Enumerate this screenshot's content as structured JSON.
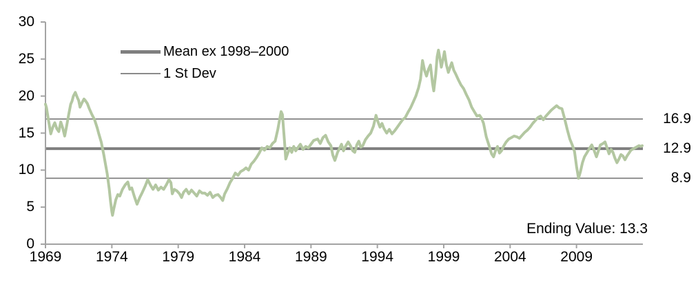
{
  "chart_data": {
    "type": "line",
    "title": "",
    "xlabel": "",
    "ylabel": "",
    "x_axis": {
      "min": 1969,
      "max": 2014,
      "tick_labels": [
        "1969",
        "1974",
        "1979",
        "1984",
        "1989",
        "1994",
        "1999",
        "2004",
        "2009"
      ],
      "ticks": [
        1969,
        1974,
        1979,
        1984,
        1989,
        1994,
        1999,
        2004,
        2009
      ]
    },
    "y_axis": {
      "min": 0,
      "max": 30,
      "tick_labels": [
        "30",
        "25",
        "20",
        "15",
        "10",
        "5",
        "0"
      ],
      "ticks": [
        0,
        5,
        10,
        15,
        20,
        25,
        30
      ]
    },
    "grid": "off",
    "legend_position": "top-left-inside",
    "legend": [
      {
        "label": "Mean ex 1998–2000",
        "style": "thick"
      },
      {
        "label": "1 St Dev",
        "style": "thin"
      }
    ],
    "reference_lines": [
      {
        "label": "16.9",
        "value": 16.9,
        "style": "thin"
      },
      {
        "label": "12.9",
        "value": 12.9,
        "style": "thick"
      },
      {
        "label": "8.9",
        "value": 8.9,
        "style": "thin"
      }
    ],
    "annotation": "Ending Value: 13.3",
    "ending_value": 13.3,
    "colors": {
      "series": "#b3c7a1",
      "mean_line": "#7f7f7f",
      "stdev_line": "#8a8a8a",
      "axis": "#a3a3a3",
      "text": "#000000"
    },
    "series": [
      {
        "points": [
          [
            1969.0,
            18.9
          ],
          [
            1969.08,
            18.4
          ],
          [
            1969.2,
            17.0
          ],
          [
            1969.4,
            14.9
          ],
          [
            1969.55,
            15.8
          ],
          [
            1969.7,
            16.4
          ],
          [
            1969.85,
            15.6
          ],
          [
            1970.0,
            15.2
          ],
          [
            1970.15,
            16.5
          ],
          [
            1970.3,
            15.7
          ],
          [
            1970.45,
            14.6
          ],
          [
            1970.6,
            16.0
          ],
          [
            1970.75,
            17.5
          ],
          [
            1970.9,
            18.9
          ],
          [
            1971.0,
            19.3
          ],
          [
            1971.1,
            20.0
          ],
          [
            1971.25,
            20.5
          ],
          [
            1971.4,
            19.8
          ],
          [
            1971.5,
            19.4
          ],
          [
            1971.6,
            18.5
          ],
          [
            1971.75,
            19.1
          ],
          [
            1971.9,
            19.6
          ],
          [
            1972.0,
            19.4
          ],
          [
            1972.15,
            19.0
          ],
          [
            1972.3,
            18.3
          ],
          [
            1972.5,
            17.5
          ],
          [
            1972.7,
            16.8
          ],
          [
            1972.9,
            15.7
          ],
          [
            1973.0,
            15.0
          ],
          [
            1973.2,
            13.8
          ],
          [
            1973.4,
            12.0
          ],
          [
            1973.5,
            11.0
          ],
          [
            1973.65,
            9.5
          ],
          [
            1973.8,
            7.5
          ],
          [
            1973.9,
            5.8
          ],
          [
            1974.0,
            4.4
          ],
          [
            1974.05,
            3.9
          ],
          [
            1974.15,
            4.8
          ],
          [
            1974.3,
            6.0
          ],
          [
            1974.45,
            6.7
          ],
          [
            1974.6,
            6.5
          ],
          [
            1974.8,
            7.4
          ],
          [
            1975.0,
            8.0
          ],
          [
            1975.2,
            8.4
          ],
          [
            1975.35,
            7.4
          ],
          [
            1975.5,
            7.6
          ],
          [
            1975.7,
            6.4
          ],
          [
            1975.9,
            5.4
          ],
          [
            1976.1,
            6.3
          ],
          [
            1976.3,
            7.0
          ],
          [
            1976.5,
            7.8
          ],
          [
            1976.7,
            8.7
          ],
          [
            1976.9,
            8.0
          ],
          [
            1977.1,
            7.4
          ],
          [
            1977.3,
            8.0
          ],
          [
            1977.5,
            7.3
          ],
          [
            1977.7,
            7.7
          ],
          [
            1977.9,
            7.4
          ],
          [
            1978.1,
            8.0
          ],
          [
            1978.3,
            8.7
          ],
          [
            1978.45,
            8.3
          ],
          [
            1978.55,
            6.8
          ],
          [
            1978.7,
            7.4
          ],
          [
            1978.9,
            7.2
          ],
          [
            1979.1,
            6.8
          ],
          [
            1979.25,
            6.3
          ],
          [
            1979.4,
            7.0
          ],
          [
            1979.6,
            7.4
          ],
          [
            1979.8,
            6.8
          ],
          [
            1980.0,
            7.3
          ],
          [
            1980.2,
            6.9
          ],
          [
            1980.4,
            6.5
          ],
          [
            1980.6,
            7.2
          ],
          [
            1980.8,
            6.9
          ],
          [
            1981.0,
            6.9
          ],
          [
            1981.2,
            6.6
          ],
          [
            1981.4,
            7.0
          ],
          [
            1981.6,
            6.3
          ],
          [
            1981.8,
            6.6
          ],
          [
            1982.0,
            6.7
          ],
          [
            1982.2,
            6.3
          ],
          [
            1982.35,
            5.9
          ],
          [
            1982.5,
            6.8
          ],
          [
            1982.7,
            7.5
          ],
          [
            1982.9,
            8.3
          ],
          [
            1983.1,
            8.9
          ],
          [
            1983.3,
            9.6
          ],
          [
            1983.5,
            9.3
          ],
          [
            1983.7,
            9.8
          ],
          [
            1983.9,
            10.0
          ],
          [
            1984.1,
            10.3
          ],
          [
            1984.3,
            10.0
          ],
          [
            1984.5,
            10.8
          ],
          [
            1984.7,
            11.2
          ],
          [
            1984.9,
            11.7
          ],
          [
            1985.1,
            12.3
          ],
          [
            1985.3,
            13.0
          ],
          [
            1985.5,
            12.7
          ],
          [
            1985.7,
            13.2
          ],
          [
            1985.9,
            13.0
          ],
          [
            1986.1,
            13.6
          ],
          [
            1986.3,
            13.9
          ],
          [
            1986.5,
            15.5
          ],
          [
            1986.65,
            17.0
          ],
          [
            1986.75,
            17.9
          ],
          [
            1986.85,
            17.5
          ],
          [
            1987.0,
            14.0
          ],
          [
            1987.1,
            11.5
          ],
          [
            1987.25,
            12.3
          ],
          [
            1987.4,
            13.0
          ],
          [
            1987.55,
            12.4
          ],
          [
            1987.7,
            13.2
          ],
          [
            1987.85,
            12.6
          ],
          [
            1988.0,
            13.0
          ],
          [
            1988.2,
            13.5
          ],
          [
            1988.4,
            12.8
          ],
          [
            1988.6,
            13.2
          ],
          [
            1988.8,
            13.0
          ],
          [
            1989.0,
            13.5
          ],
          [
            1989.2,
            14.0
          ],
          [
            1989.5,
            14.2
          ],
          [
            1989.7,
            13.6
          ],
          [
            1989.9,
            14.4
          ],
          [
            1990.1,
            14.7
          ],
          [
            1990.3,
            13.8
          ],
          [
            1990.5,
            13.3
          ],
          [
            1990.65,
            12.0
          ],
          [
            1990.8,
            11.3
          ],
          [
            1991.0,
            12.4
          ],
          [
            1991.3,
            13.5
          ],
          [
            1991.45,
            12.6
          ],
          [
            1991.6,
            13.2
          ],
          [
            1991.8,
            13.8
          ],
          [
            1992.0,
            13.2
          ],
          [
            1992.15,
            12.6
          ],
          [
            1992.3,
            12.4
          ],
          [
            1992.45,
            13.4
          ],
          [
            1992.6,
            13.9
          ],
          [
            1992.75,
            13.1
          ],
          [
            1992.9,
            13.3
          ],
          [
            1993.1,
            14.1
          ],
          [
            1993.3,
            14.6
          ],
          [
            1993.5,
            15.0
          ],
          [
            1993.7,
            15.9
          ],
          [
            1993.9,
            17.4
          ],
          [
            1994.05,
            16.5
          ],
          [
            1994.2,
            15.8
          ],
          [
            1994.35,
            16.3
          ],
          [
            1994.5,
            15.6
          ],
          [
            1994.7,
            15.0
          ],
          [
            1994.9,
            15.5
          ],
          [
            1995.1,
            14.9
          ],
          [
            1995.3,
            15.3
          ],
          [
            1995.5,
            15.8
          ],
          [
            1995.7,
            16.3
          ],
          [
            1995.9,
            16.8
          ],
          [
            1996.1,
            17.1
          ],
          [
            1996.3,
            17.8
          ],
          [
            1996.5,
            18.4
          ],
          [
            1996.7,
            19.2
          ],
          [
            1996.9,
            20.0
          ],
          [
            1997.1,
            21.1
          ],
          [
            1997.25,
            22.3
          ],
          [
            1997.4,
            24.8
          ],
          [
            1997.55,
            23.5
          ],
          [
            1997.7,
            22.7
          ],
          [
            1997.85,
            23.6
          ],
          [
            1998.0,
            24.2
          ],
          [
            1998.15,
            21.8
          ],
          [
            1998.25,
            20.7
          ],
          [
            1998.4,
            23.0
          ],
          [
            1998.5,
            25.3
          ],
          [
            1998.6,
            26.2
          ],
          [
            1998.72,
            25.0
          ],
          [
            1998.82,
            23.9
          ],
          [
            1998.95,
            25.0
          ],
          [
            1999.05,
            26.0
          ],
          [
            1999.2,
            24.2
          ],
          [
            1999.35,
            23.2
          ],
          [
            1999.5,
            24.0
          ],
          [
            1999.6,
            24.5
          ],
          [
            1999.75,
            23.5
          ],
          [
            1999.9,
            23.0
          ],
          [
            2000.1,
            22.2
          ],
          [
            2000.3,
            21.5
          ],
          [
            2000.5,
            21.0
          ],
          [
            2000.7,
            20.2
          ],
          [
            2000.9,
            19.5
          ],
          [
            2001.1,
            18.5
          ],
          [
            2001.3,
            17.9
          ],
          [
            2001.5,
            17.3
          ],
          [
            2001.7,
            17.4
          ],
          [
            2001.85,
            17.0
          ],
          [
            2002.0,
            16.3
          ],
          [
            2002.2,
            14.5
          ],
          [
            2002.4,
            13.4
          ],
          [
            2002.6,
            12.2
          ],
          [
            2002.75,
            11.8
          ],
          [
            2002.9,
            12.6
          ],
          [
            2003.05,
            13.2
          ],
          [
            2003.2,
            12.3
          ],
          [
            2003.35,
            12.6
          ],
          [
            2003.5,
            13.2
          ],
          [
            2003.7,
            13.8
          ],
          [
            2003.9,
            14.2
          ],
          [
            2004.1,
            14.4
          ],
          [
            2004.3,
            14.6
          ],
          [
            2004.5,
            14.5
          ],
          [
            2004.7,
            14.3
          ],
          [
            2004.9,
            14.7
          ],
          [
            2005.1,
            15.1
          ],
          [
            2005.3,
            15.4
          ],
          [
            2005.5,
            15.8
          ],
          [
            2005.7,
            16.3
          ],
          [
            2005.9,
            16.7
          ],
          [
            2006.1,
            17.1
          ],
          [
            2006.3,
            17.3
          ],
          [
            2006.5,
            16.8
          ],
          [
            2006.7,
            17.3
          ],
          [
            2006.9,
            17.7
          ],
          [
            2007.1,
            18.1
          ],
          [
            2007.3,
            18.4
          ],
          [
            2007.5,
            18.7
          ],
          [
            2007.7,
            18.4
          ],
          [
            2007.9,
            18.3
          ],
          [
            2008.1,
            17.0
          ],
          [
            2008.3,
            15.5
          ],
          [
            2008.5,
            14.2
          ],
          [
            2008.7,
            13.3
          ],
          [
            2008.85,
            12.5
          ],
          [
            2009.0,
            10.5
          ],
          [
            2009.15,
            8.9
          ],
          [
            2009.3,
            9.8
          ],
          [
            2009.45,
            11.0
          ],
          [
            2009.6,
            11.8
          ],
          [
            2009.8,
            12.4
          ],
          [
            2010.0,
            13.0
          ],
          [
            2010.15,
            13.4
          ],
          [
            2010.3,
            12.8
          ],
          [
            2010.5,
            11.8
          ],
          [
            2010.65,
            12.6
          ],
          [
            2010.8,
            13.4
          ],
          [
            2011.0,
            13.6
          ],
          [
            2011.15,
            13.8
          ],
          [
            2011.3,
            13.0
          ],
          [
            2011.45,
            12.2
          ],
          [
            2011.6,
            12.8
          ],
          [
            2011.75,
            12.4
          ],
          [
            2011.9,
            11.6
          ],
          [
            2012.05,
            11.0
          ],
          [
            2012.2,
            11.5
          ],
          [
            2012.35,
            12.1
          ],
          [
            2012.5,
            11.9
          ],
          [
            2012.65,
            11.4
          ],
          [
            2012.8,
            11.9
          ],
          [
            2012.95,
            12.3
          ],
          [
            2013.1,
            12.7
          ],
          [
            2013.3,
            12.9
          ],
          [
            2013.5,
            13.1
          ],
          [
            2013.7,
            13.3
          ],
          [
            2013.85,
            13.2
          ],
          [
            2013.95,
            13.3
          ]
        ]
      }
    ]
  }
}
